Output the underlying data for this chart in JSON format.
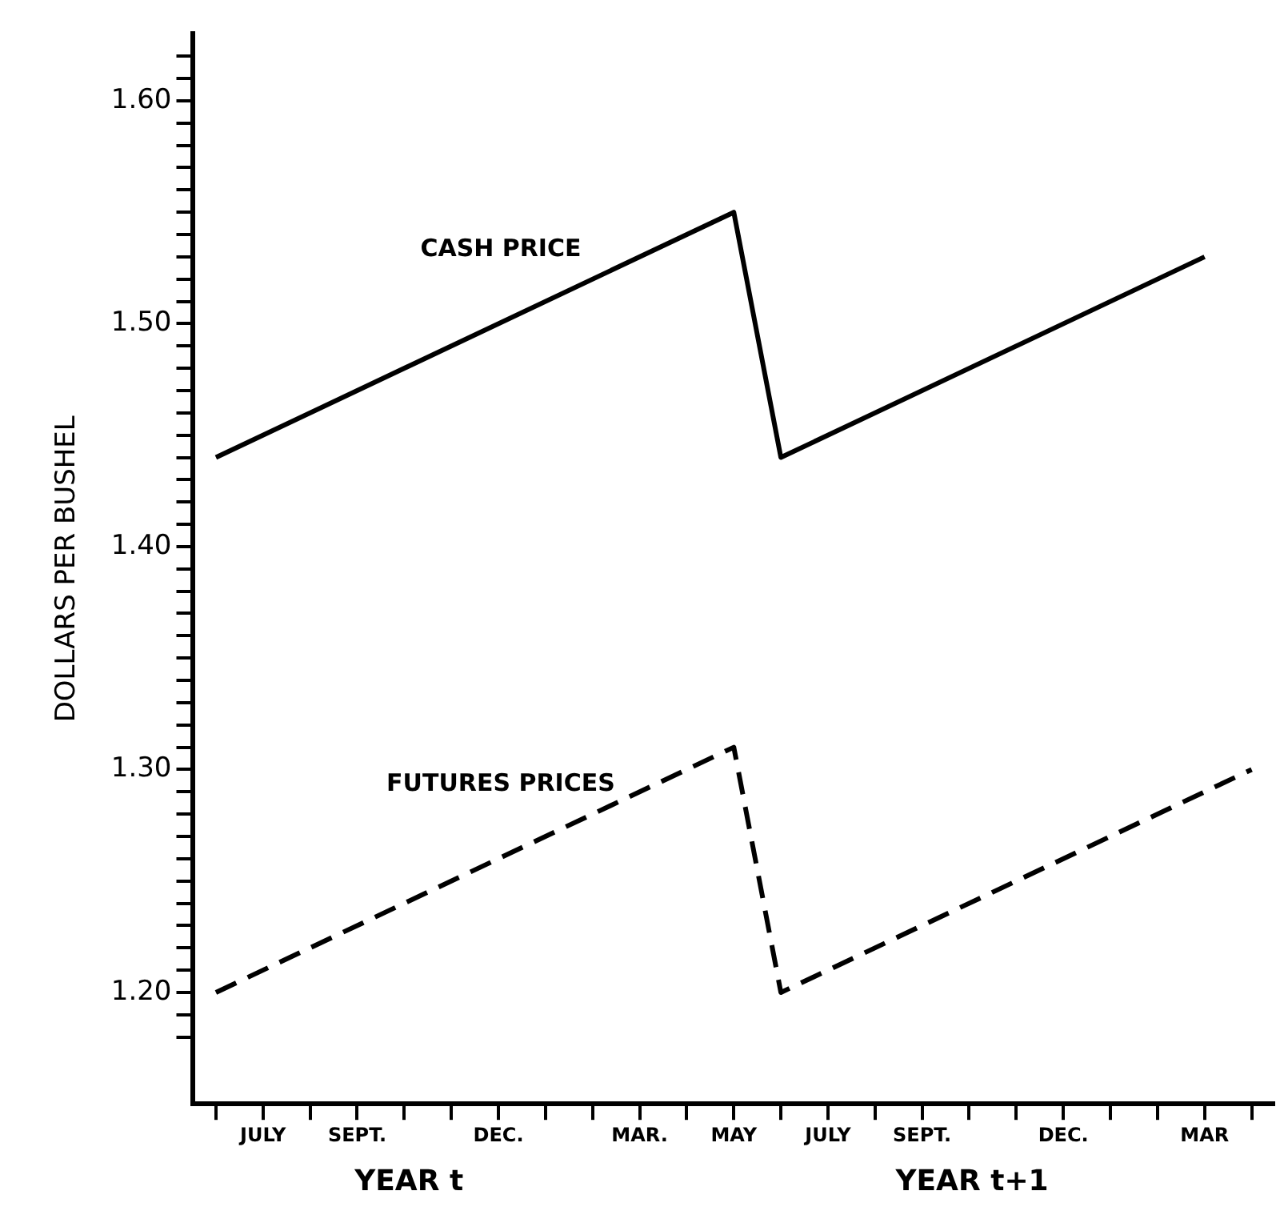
{
  "chart_data": {
    "type": "line",
    "ylabel": "DOLLARS PER BUSHEL",
    "annotations": [
      "YEAR t",
      "YEAR t+1"
    ],
    "categories": [
      null,
      "JULY",
      null,
      "SEPT.",
      null,
      null,
      "DEC.",
      null,
      null,
      "MAR.",
      null,
      "MAY",
      null,
      "JULY",
      null,
      "SEPT.",
      null,
      null,
      "DEC.",
      null,
      null,
      "MAR",
      null
    ],
    "ylim": [
      1.15,
      1.63
    ],
    "yticks": [
      {
        "value": 1.18,
        "label": null
      },
      {
        "value": 1.19,
        "label": null
      },
      {
        "value": 1.2,
        "label": "1.20"
      },
      {
        "value": 1.21,
        "label": null
      },
      {
        "value": 1.22,
        "label": null
      },
      {
        "value": 1.23,
        "label": null
      },
      {
        "value": 1.24,
        "label": null
      },
      {
        "value": 1.25,
        "label": null
      },
      {
        "value": 1.26,
        "label": null
      },
      {
        "value": 1.27,
        "label": null
      },
      {
        "value": 1.28,
        "label": null
      },
      {
        "value": 1.29,
        "label": null
      },
      {
        "value": 1.3,
        "label": "1.30"
      },
      {
        "value": 1.31,
        "label": null
      },
      {
        "value": 1.32,
        "label": null
      },
      {
        "value": 1.33,
        "label": null
      },
      {
        "value": 1.34,
        "label": null
      },
      {
        "value": 1.35,
        "label": null
      },
      {
        "value": 1.36,
        "label": null
      },
      {
        "value": 1.37,
        "label": null
      },
      {
        "value": 1.38,
        "label": null
      },
      {
        "value": 1.39,
        "label": null
      },
      {
        "value": 1.4,
        "label": "1.40"
      },
      {
        "value": 1.41,
        "label": null
      },
      {
        "value": 1.42,
        "label": null
      },
      {
        "value": 1.43,
        "label": null
      },
      {
        "value": 1.44,
        "label": null
      },
      {
        "value": 1.45,
        "label": null
      },
      {
        "value": 1.46,
        "label": null
      },
      {
        "value": 1.47,
        "label": null
      },
      {
        "value": 1.48,
        "label": null
      },
      {
        "value": 1.49,
        "label": null
      },
      {
        "value": 1.5,
        "label": "1.50"
      },
      {
        "value": 1.51,
        "label": null
      },
      {
        "value": 1.52,
        "label": null
      },
      {
        "value": 1.53,
        "label": null
      },
      {
        "value": 1.54,
        "label": null
      },
      {
        "value": 1.55,
        "label": null
      },
      {
        "value": 1.56,
        "label": null
      },
      {
        "value": 1.57,
        "label": null
      },
      {
        "value": 1.58,
        "label": null
      },
      {
        "value": 1.59,
        "label": null
      },
      {
        "value": 1.6,
        "label": "1.60"
      },
      {
        "value": 1.61,
        "label": null
      },
      {
        "value": 1.62,
        "label": null
      }
    ],
    "grid": false,
    "legend": false,
    "series": [
      {
        "name": "CASH PRICE",
        "color": "#000000",
        "line_style": "solid",
        "values": [
          1.44,
          null,
          null,
          null,
          null,
          null,
          null,
          null,
          null,
          null,
          null,
          1.55,
          1.44,
          null,
          null,
          null,
          null,
          null,
          null,
          null,
          null,
          1.53,
          null
        ]
      },
      {
        "name": "FUTURES PRICES",
        "color": "#000000",
        "line_style": "dashed",
        "values": [
          1.2,
          null,
          null,
          null,
          null,
          null,
          null,
          null,
          null,
          null,
          null,
          1.31,
          1.2,
          null,
          null,
          null,
          null,
          null,
          null,
          null,
          null,
          null,
          1.3
        ]
      }
    ]
  }
}
